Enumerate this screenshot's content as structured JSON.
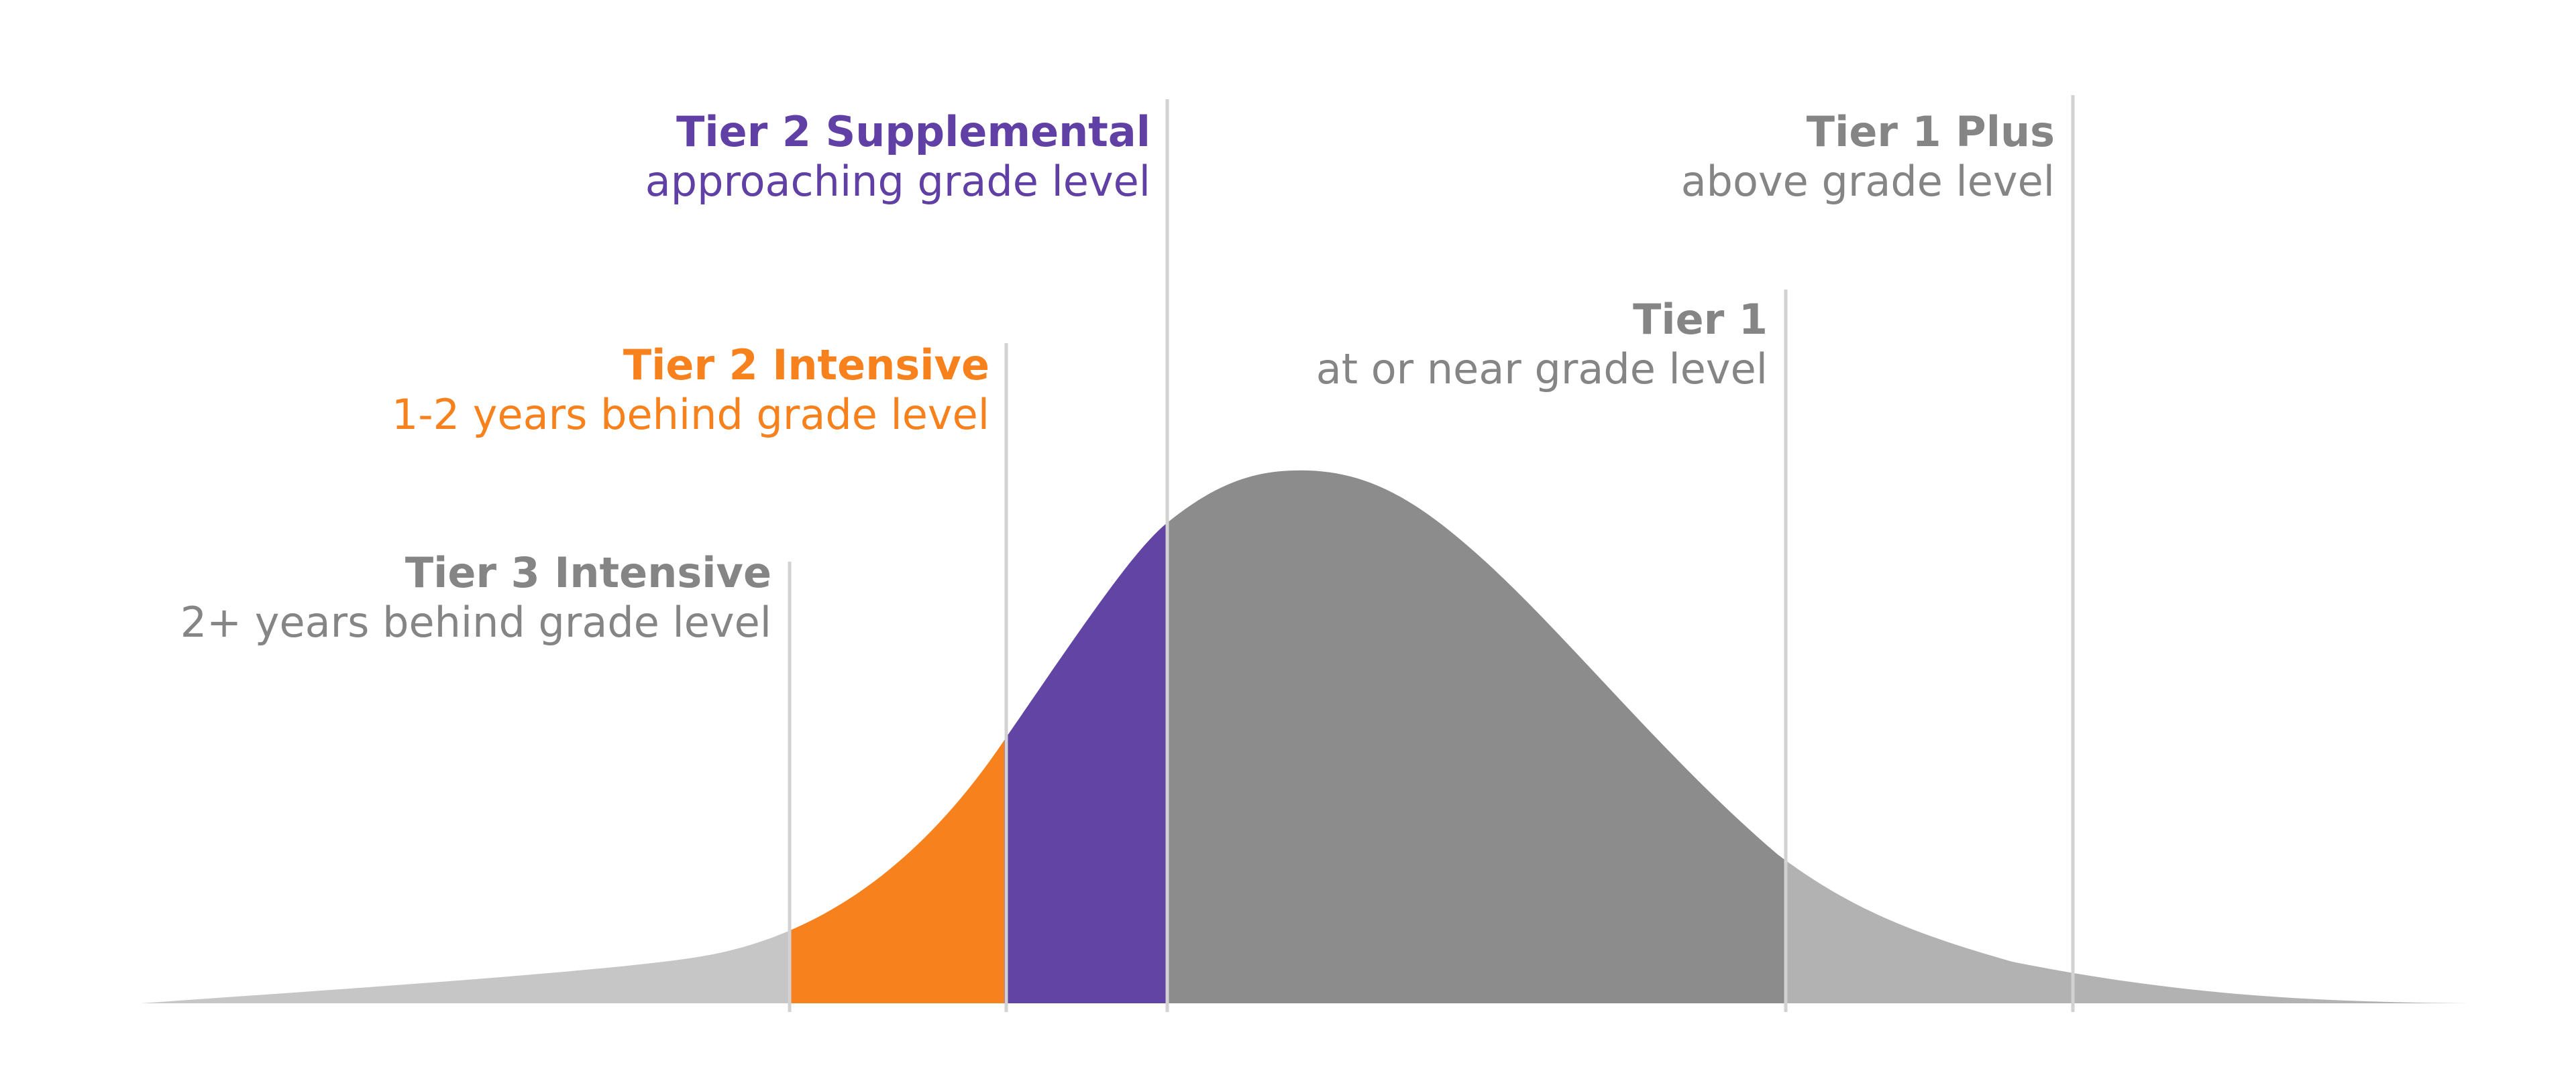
{
  "colors": {
    "tier3": "#c6c6c6",
    "tier2_intensive": "#f7821d",
    "tier2_supplemental": "#6144a4",
    "tier1": "#8c8c8c",
    "tier1_plus": "#b2b2b2",
    "marker_line": "#d2d2d2",
    "label_gray": "#858585",
    "label_orange": "#f7821d",
    "label_purple": "#6040a4"
  },
  "tiers": [
    {
      "key": "tier3",
      "title": "Tier 3 Intensive",
      "description": "2+ years behind grade level"
    },
    {
      "key": "tier2_intensive",
      "title": "Tier 2 Intensive",
      "description": "1-2 years behind grade level"
    },
    {
      "key": "tier2_supplemental",
      "title": "Tier 2 Supplemental",
      "description": "approaching grade level"
    },
    {
      "key": "tier1",
      "title": "Tier 1",
      "description": "at or near grade level"
    },
    {
      "key": "tier1_plus",
      "title": "Tier 1 Plus",
      "description": "above grade level"
    }
  ]
}
